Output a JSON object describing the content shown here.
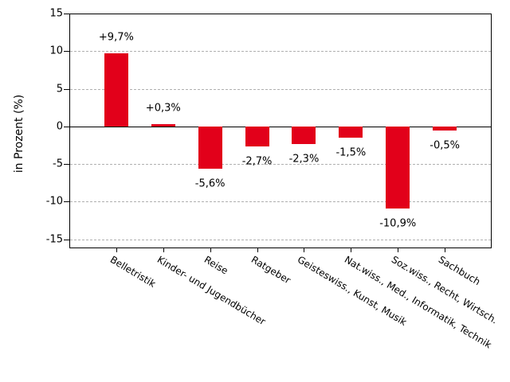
{
  "chart_data": {
    "type": "bar",
    "title": "",
    "xlabel": "",
    "ylabel": "in Prozent (%)",
    "categories": [
      "Belletristik",
      "Kinder- und Jugendbücher",
      "Reise",
      "Ratgeber",
      "Geisteswiss., Kunst, Musik",
      "Nat.wiss., Med., Informatik, Technik",
      "Soz.wiss., Recht, Wirtsch.",
      "Sachbuch"
    ],
    "values": [
      9.7,
      0.3,
      -5.6,
      -2.7,
      -2.3,
      -1.5,
      -10.9,
      -0.5
    ],
    "value_labels": [
      "+9,7%",
      "+0,3%",
      "-5,6%",
      "-2,7%",
      "-2,3%",
      "-1,5%",
      "-10,9%",
      "-0,5%"
    ],
    "y_ticks": [
      15,
      10,
      5,
      0,
      -5,
      -10,
      -15
    ],
    "y_tick_labels": [
      "15",
      "10",
      "5",
      "0",
      "-5",
      "-10",
      "-15"
    ],
    "gridlines_at": [
      10,
      5,
      -5,
      -10,
      -15
    ],
    "ylim": [
      -16.2,
      15
    ],
    "grid": "horizontal dashed",
    "legend": "none",
    "bar_color": "#e2001a",
    "grid_color": "#b0b0b0",
    "axis_color": "#000000",
    "background_color": "#ffffff"
  }
}
